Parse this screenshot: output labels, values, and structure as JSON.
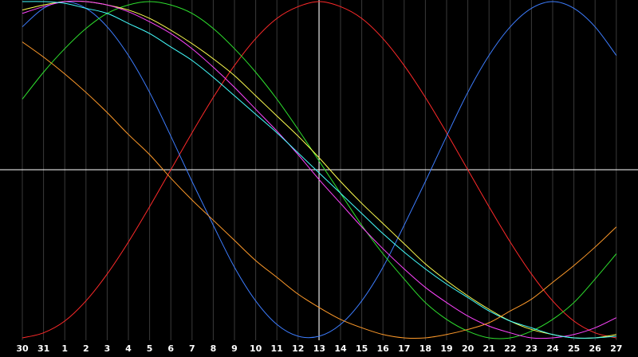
{
  "chart_data": {
    "type": "line",
    "categories": [
      "30",
      "31",
      "1",
      "2",
      "3",
      "4",
      "5",
      "6",
      "7",
      "8",
      "9",
      "10",
      "11",
      "12",
      "13",
      "14",
      "15",
      "16",
      "17",
      "18",
      "19",
      "20",
      "21",
      "22",
      "23",
      "24",
      "25",
      "26",
      "27"
    ],
    "ylim": [
      -1,
      1
    ],
    "grid": true,
    "series": [
      {
        "color": "#ff2a2a",
        "values": [
          -1,
          -0.97,
          -0.9,
          -0.78,
          -0.62,
          -0.43,
          -0.22,
          0,
          0.22,
          0.43,
          0.62,
          0.78,
          0.9,
          0.97,
          1,
          0.97,
          0.9,
          0.78,
          0.62,
          0.43,
          0.22,
          0,
          -0.22,
          -0.43,
          -0.62,
          -0.78,
          -0.9,
          -0.97,
          -1
        ]
      },
      {
        "color": "#3d7dff",
        "values": [
          0.85,
          0.96,
          1,
          0.96,
          0.85,
          0.68,
          0.46,
          0.2,
          -0.07,
          -0.33,
          -0.58,
          -0.78,
          -0.92,
          -0.99,
          -0.99,
          -0.92,
          -0.78,
          -0.58,
          -0.33,
          -0.07,
          0.2,
          0.46,
          0.68,
          0.85,
          0.96,
          1,
          0.96,
          0.85,
          0.68
        ]
      },
      {
        "color": "#2ee02e",
        "values": [
          0.42,
          0.58,
          0.72,
          0.84,
          0.93,
          0.98,
          1,
          0.98,
          0.93,
          0.84,
          0.72,
          0.58,
          0.42,
          0.24,
          0.05,
          -0.14,
          -0.33,
          -0.5,
          -0.65,
          -0.79,
          -0.89,
          -0.96,
          -1,
          -1,
          -0.96,
          -0.89,
          -0.79,
          -0.65,
          -0.5
        ]
      },
      {
        "color": "#ffff50",
        "values": [
          0.95,
          0.98,
          1,
          1,
          0.98,
          0.95,
          0.9,
          0.83,
          0.75,
          0.66,
          0.56,
          0.44,
          0.32,
          0.2,
          0.07,
          -0.07,
          -0.2,
          -0.32,
          -0.44,
          -0.56,
          -0.66,
          -0.75,
          -0.83,
          -0.9,
          -0.95,
          -0.98,
          -1,
          -1,
          -0.98
        ]
      },
      {
        "color": "#ff44ff",
        "values": [
          0.93,
          0.97,
          1,
          1,
          0.98,
          0.94,
          0.88,
          0.81,
          0.72,
          0.61,
          0.49,
          0.36,
          0.23,
          0.09,
          -0.06,
          -0.2,
          -0.34,
          -0.47,
          -0.59,
          -0.7,
          -0.79,
          -0.87,
          -0.93,
          -0.97,
          -1,
          -1,
          -0.98,
          -0.94,
          -0.88
        ]
      },
      {
        "color": "#44ffff",
        "values": [
          1,
          1,
          0.99,
          0.96,
          0.93,
          0.87,
          0.81,
          0.73,
          0.65,
          0.55,
          0.44,
          0.33,
          0.22,
          0.1,
          -0.02,
          -0.14,
          -0.26,
          -0.38,
          -0.49,
          -0.59,
          -0.68,
          -0.76,
          -0.84,
          -0.9,
          -0.94,
          -0.98,
          -1,
          -1,
          -0.99
        ]
      },
      {
        "color": "#ff9a2a",
        "values": [
          0.76,
          0.67,
          0.57,
          0.46,
          0.34,
          0.21,
          0.09,
          -0.05,
          -0.18,
          -0.3,
          -0.42,
          -0.54,
          -0.64,
          -0.74,
          -0.82,
          -0.89,
          -0.94,
          -0.98,
          -1,
          -1,
          -0.98,
          -0.95,
          -0.91,
          -0.84,
          -0.77,
          -0.67,
          -0.57,
          -0.46,
          -0.34
        ]
      }
    ]
  }
}
